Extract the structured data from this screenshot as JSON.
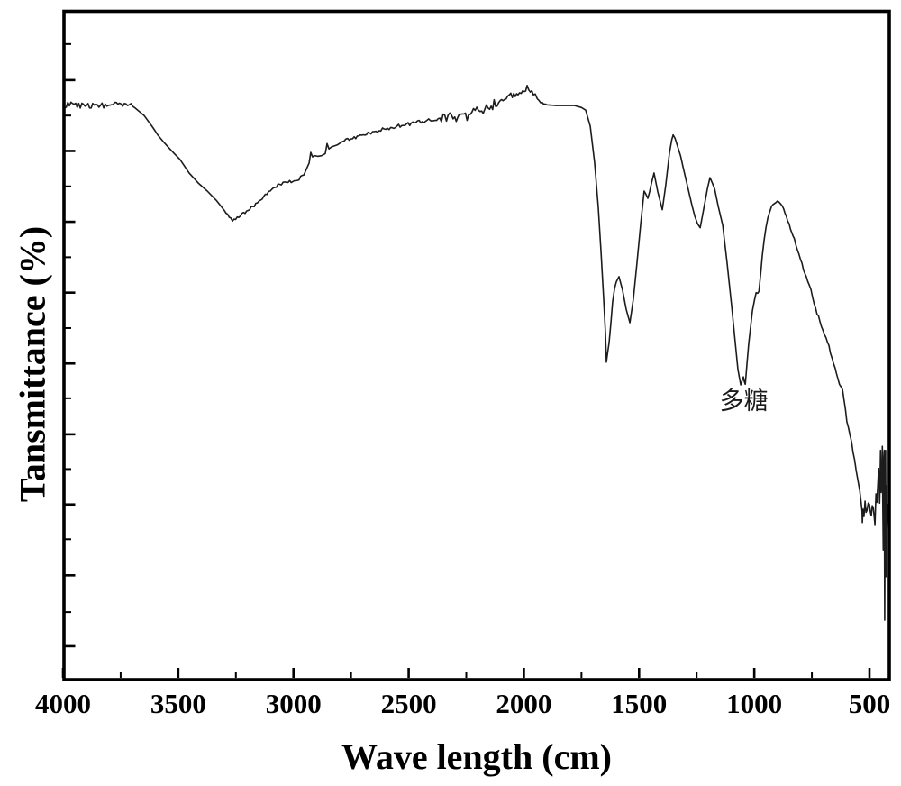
{
  "figure": {
    "background": "#ffffff",
    "ink_color": "#000000",
    "curve_color": "#1c1c1c"
  },
  "chart_data": {
    "type": "line",
    "title": "",
    "xlabel": "Wave length (cm)",
    "ylabel": "Tansmittance (%)",
    "legend": "none",
    "grid": "off",
    "x_axis": {
      "direction": "decreasing-left-to-right",
      "left_value": 4000,
      "right_value": 414,
      "major_ticks": [
        4000,
        3500,
        3000,
        2500,
        2000,
        1500,
        1000,
        500
      ],
      "tick_labels": [
        "4000",
        "3500",
        "3000",
        "2500",
        "2000",
        "1500",
        "1000",
        "500"
      ],
      "minor_ticks": [
        3750,
        3250,
        2750,
        2250,
        1750,
        1250,
        750
      ]
    },
    "y_axis": {
      "tick_labels_shown": false,
      "scale_note": "y values are percent of plot height (no numeric labels printed in figure)",
      "major_tick_positions_pct": [
        5.0,
        15.6,
        26.2,
        36.7,
        47.3,
        57.9,
        68.5,
        79.1,
        89.7
      ],
      "minor_tick_positions_pct": [
        10.1,
        21.0,
        31.5,
        42.1,
        52.6,
        63.2,
        73.8,
        84.4,
        95.1
      ]
    },
    "annotation": {
      "text": "多糖",
      "x_wavenumber": 1045,
      "y_pct": 41.5
    },
    "series": [
      {
        "name": "spectrum",
        "points": [
          [
            4000,
            85.9
          ],
          [
            3952,
            86.1
          ],
          [
            3905,
            85.8
          ],
          [
            3858,
            86.1
          ],
          [
            3810,
            85.8
          ],
          [
            3762,
            86.1
          ],
          [
            3720,
            85.9
          ],
          [
            3690,
            85.6
          ],
          [
            3648,
            84.4
          ],
          [
            3610,
            82.6
          ],
          [
            3589,
            81.5
          ],
          [
            3560,
            80.3
          ],
          [
            3531,
            79.2
          ],
          [
            3492,
            77.8
          ],
          [
            3453,
            75.8
          ],
          [
            3413,
            74.3
          ],
          [
            3374,
            73.1
          ],
          [
            3335,
            71.7
          ],
          [
            3300,
            70.2
          ],
          [
            3265,
            68.6
          ],
          [
            3230,
            69.4
          ],
          [
            3190,
            70.3
          ],
          [
            3150,
            71.6
          ],
          [
            3101,
            73.1
          ],
          [
            3060,
            74.1
          ],
          [
            3030,
            74.4
          ],
          [
            2983,
            74.7
          ],
          [
            2955,
            75.5
          ],
          [
            2940,
            76.7
          ],
          [
            2932,
            77.3
          ],
          [
            2925,
            78.9
          ],
          [
            2917,
            78.2
          ],
          [
            2909,
            78.4
          ],
          [
            2894,
            78.3
          ],
          [
            2878,
            78.4
          ],
          [
            2862,
            78.7
          ],
          [
            2854,
            80.2
          ],
          [
            2846,
            79.4
          ],
          [
            2835,
            79.7
          ],
          [
            2810,
            80.0
          ],
          [
            2788,
            80.5
          ],
          [
            2750,
            80.9
          ],
          [
            2710,
            81.5
          ],
          [
            2650,
            82.0
          ],
          [
            2592,
            82.5
          ],
          [
            2530,
            82.9
          ],
          [
            2475,
            83.3
          ],
          [
            2420,
            83.7
          ],
          [
            2365,
            84.0
          ],
          [
            2300,
            84.2
          ],
          [
            2240,
            84.5
          ],
          [
            2190,
            85.0
          ],
          [
            2142,
            85.8
          ],
          [
            2110,
            86.3
          ],
          [
            2084,
            86.8
          ],
          [
            2050,
            87.1
          ],
          [
            2025,
            87.5
          ],
          [
            2005,
            88.1
          ],
          [
            1986,
            88.9
          ],
          [
            1972,
            87.9
          ],
          [
            1959,
            87.5
          ],
          [
            1942,
            86.9
          ],
          [
            1927,
            86.3
          ],
          [
            1900,
            86.0
          ],
          [
            1860,
            85.9
          ],
          [
            1820,
            85.9
          ],
          [
            1780,
            85.9
          ],
          [
            1750,
            85.6
          ],
          [
            1732,
            85.2
          ],
          [
            1712,
            82.8
          ],
          [
            1693,
            77.4
          ],
          [
            1677,
            70.7
          ],
          [
            1665,
            63.9
          ],
          [
            1654,
            57.2
          ],
          [
            1646,
            51.8
          ],
          [
            1642,
            47.5
          ],
          [
            1636,
            49.0
          ],
          [
            1630,
            50.4
          ],
          [
            1622,
            53.5
          ],
          [
            1615,
            56.5
          ],
          [
            1606,
            58.6
          ],
          [
            1599,
            59.5
          ],
          [
            1587,
            60.3
          ],
          [
            1572,
            58.3
          ],
          [
            1556,
            55.4
          ],
          [
            1540,
            53.4
          ],
          [
            1525,
            56.9
          ],
          [
            1509,
            62.4
          ],
          [
            1493,
            68.2
          ],
          [
            1478,
            73.1
          ],
          [
            1470,
            72.6
          ],
          [
            1462,
            72.0
          ],
          [
            1454,
            73.0
          ],
          [
            1446,
            74.3
          ],
          [
            1435,
            75.8
          ],
          [
            1419,
            73.0
          ],
          [
            1399,
            70.3
          ],
          [
            1384,
            74.0
          ],
          [
            1368,
            78.8
          ],
          [
            1358,
            80.8
          ],
          [
            1352,
            81.5
          ],
          [
            1344,
            81.0
          ],
          [
            1333,
            79.8
          ],
          [
            1320,
            78.4
          ],
          [
            1309,
            76.7
          ],
          [
            1295,
            74.6
          ],
          [
            1282,
            72.7
          ],
          [
            1270,
            70.9
          ],
          [
            1258,
            69.3
          ],
          [
            1246,
            68.2
          ],
          [
            1235,
            67.6
          ],
          [
            1225,
            69.4
          ],
          [
            1215,
            71.3
          ],
          [
            1203,
            73.5
          ],
          [
            1192,
            75.1
          ],
          [
            1182,
            74.3
          ],
          [
            1172,
            73.4
          ],
          [
            1157,
            70.9
          ],
          [
            1137,
            68.0
          ],
          [
            1118,
            62.3
          ],
          [
            1098,
            55.8
          ],
          [
            1082,
            50.2
          ],
          [
            1071,
            46.4
          ],
          [
            1059,
            44.1
          ],
          [
            1050,
            45.0
          ],
          [
            1047,
            45.3
          ],
          [
            1043,
            44.6
          ],
          [
            1039,
            44.2
          ],
          [
            1031,
            47.5
          ],
          [
            1024,
            50.3
          ],
          [
            1008,
            55.2
          ],
          [
            999,
            56.8
          ],
          [
            992,
            57.9
          ],
          [
            985,
            57.8
          ],
          [
            980,
            58.1
          ],
          [
            972,
            60.8
          ],
          [
            965,
            63.5
          ],
          [
            957,
            65.8
          ],
          [
            949,
            67.7
          ],
          [
            941,
            69.1
          ],
          [
            933,
            70.0
          ],
          [
            925,
            70.8
          ],
          [
            918,
            71.1
          ],
          [
            905,
            71.4
          ],
          [
            894,
            71.5
          ],
          [
            886,
            71.2
          ],
          [
            879,
            70.9
          ],
          [
            867,
            69.8
          ],
          [
            855,
            68.6
          ],
          [
            843,
            67.4
          ],
          [
            832,
            66.4
          ],
          [
            813,
            64.3
          ],
          [
            793,
            62.3
          ],
          [
            774,
            60.3
          ],
          [
            754,
            58.4
          ],
          [
            734,
            55.6
          ],
          [
            715,
            53.6
          ],
          [
            695,
            51.6
          ],
          [
            676,
            50.0
          ],
          [
            656,
            47.3
          ],
          [
            637,
            45.0
          ],
          [
            617,
            43.4
          ],
          [
            598,
            38.6
          ],
          [
            578,
            35.6
          ],
          [
            558,
            31.3
          ],
          [
            542,
            28.2
          ],
          [
            532,
            25.2
          ],
          [
            531,
            23.5
          ],
          [
            528,
            25.5
          ],
          [
            524,
            24.4
          ],
          [
            519,
            26.7
          ],
          [
            515,
            25.0
          ],
          [
            511,
            25.3
          ],
          [
            505,
            26.4
          ],
          [
            500,
            26.2
          ],
          [
            496,
            25.1
          ],
          [
            492,
            24.5
          ],
          [
            488,
            26.0
          ],
          [
            484,
            25.8
          ],
          [
            480,
            24.6
          ],
          [
            476,
            23.2
          ],
          [
            472,
            27.8
          ],
          [
            468,
            26.5
          ],
          [
            464,
            28.9
          ],
          [
            460,
            31.6
          ],
          [
            456,
            26.4
          ],
          [
            452,
            34.3
          ],
          [
            449,
            28.0
          ],
          [
            446,
            30.5
          ],
          [
            444,
            34.9
          ],
          [
            442,
            26.0
          ],
          [
            440,
            19.4
          ],
          [
            438,
            33.0
          ],
          [
            436,
            34.3
          ],
          [
            434,
            8.9
          ],
          [
            432,
            30.0
          ],
          [
            430,
            34.3
          ],
          [
            428,
            15.4
          ],
          [
            426,
            29.0
          ],
          [
            424,
            25.0
          ],
          [
            422,
            26.2
          ],
          [
            419,
            24.0
          ],
          [
            416,
            22.0
          ],
          [
            414,
            25.0
          ]
        ],
        "noise_segments": [
          {
            "w_from": 4000,
            "w_to": 3690,
            "amp": 0.45
          },
          {
            "w_from": 3290,
            "w_to": 2950,
            "amp": 0.25
          },
          {
            "w_from": 2780,
            "w_to": 2365,
            "amp": 0.28
          },
          {
            "w_from": 2350,
            "w_to": 1945,
            "amp": 0.8
          },
          {
            "w_from": 1940,
            "w_to": 1885,
            "amp": 0.3
          },
          {
            "w_from": 910,
            "w_to": 560,
            "amp": 0.3
          }
        ]
      }
    ]
  }
}
